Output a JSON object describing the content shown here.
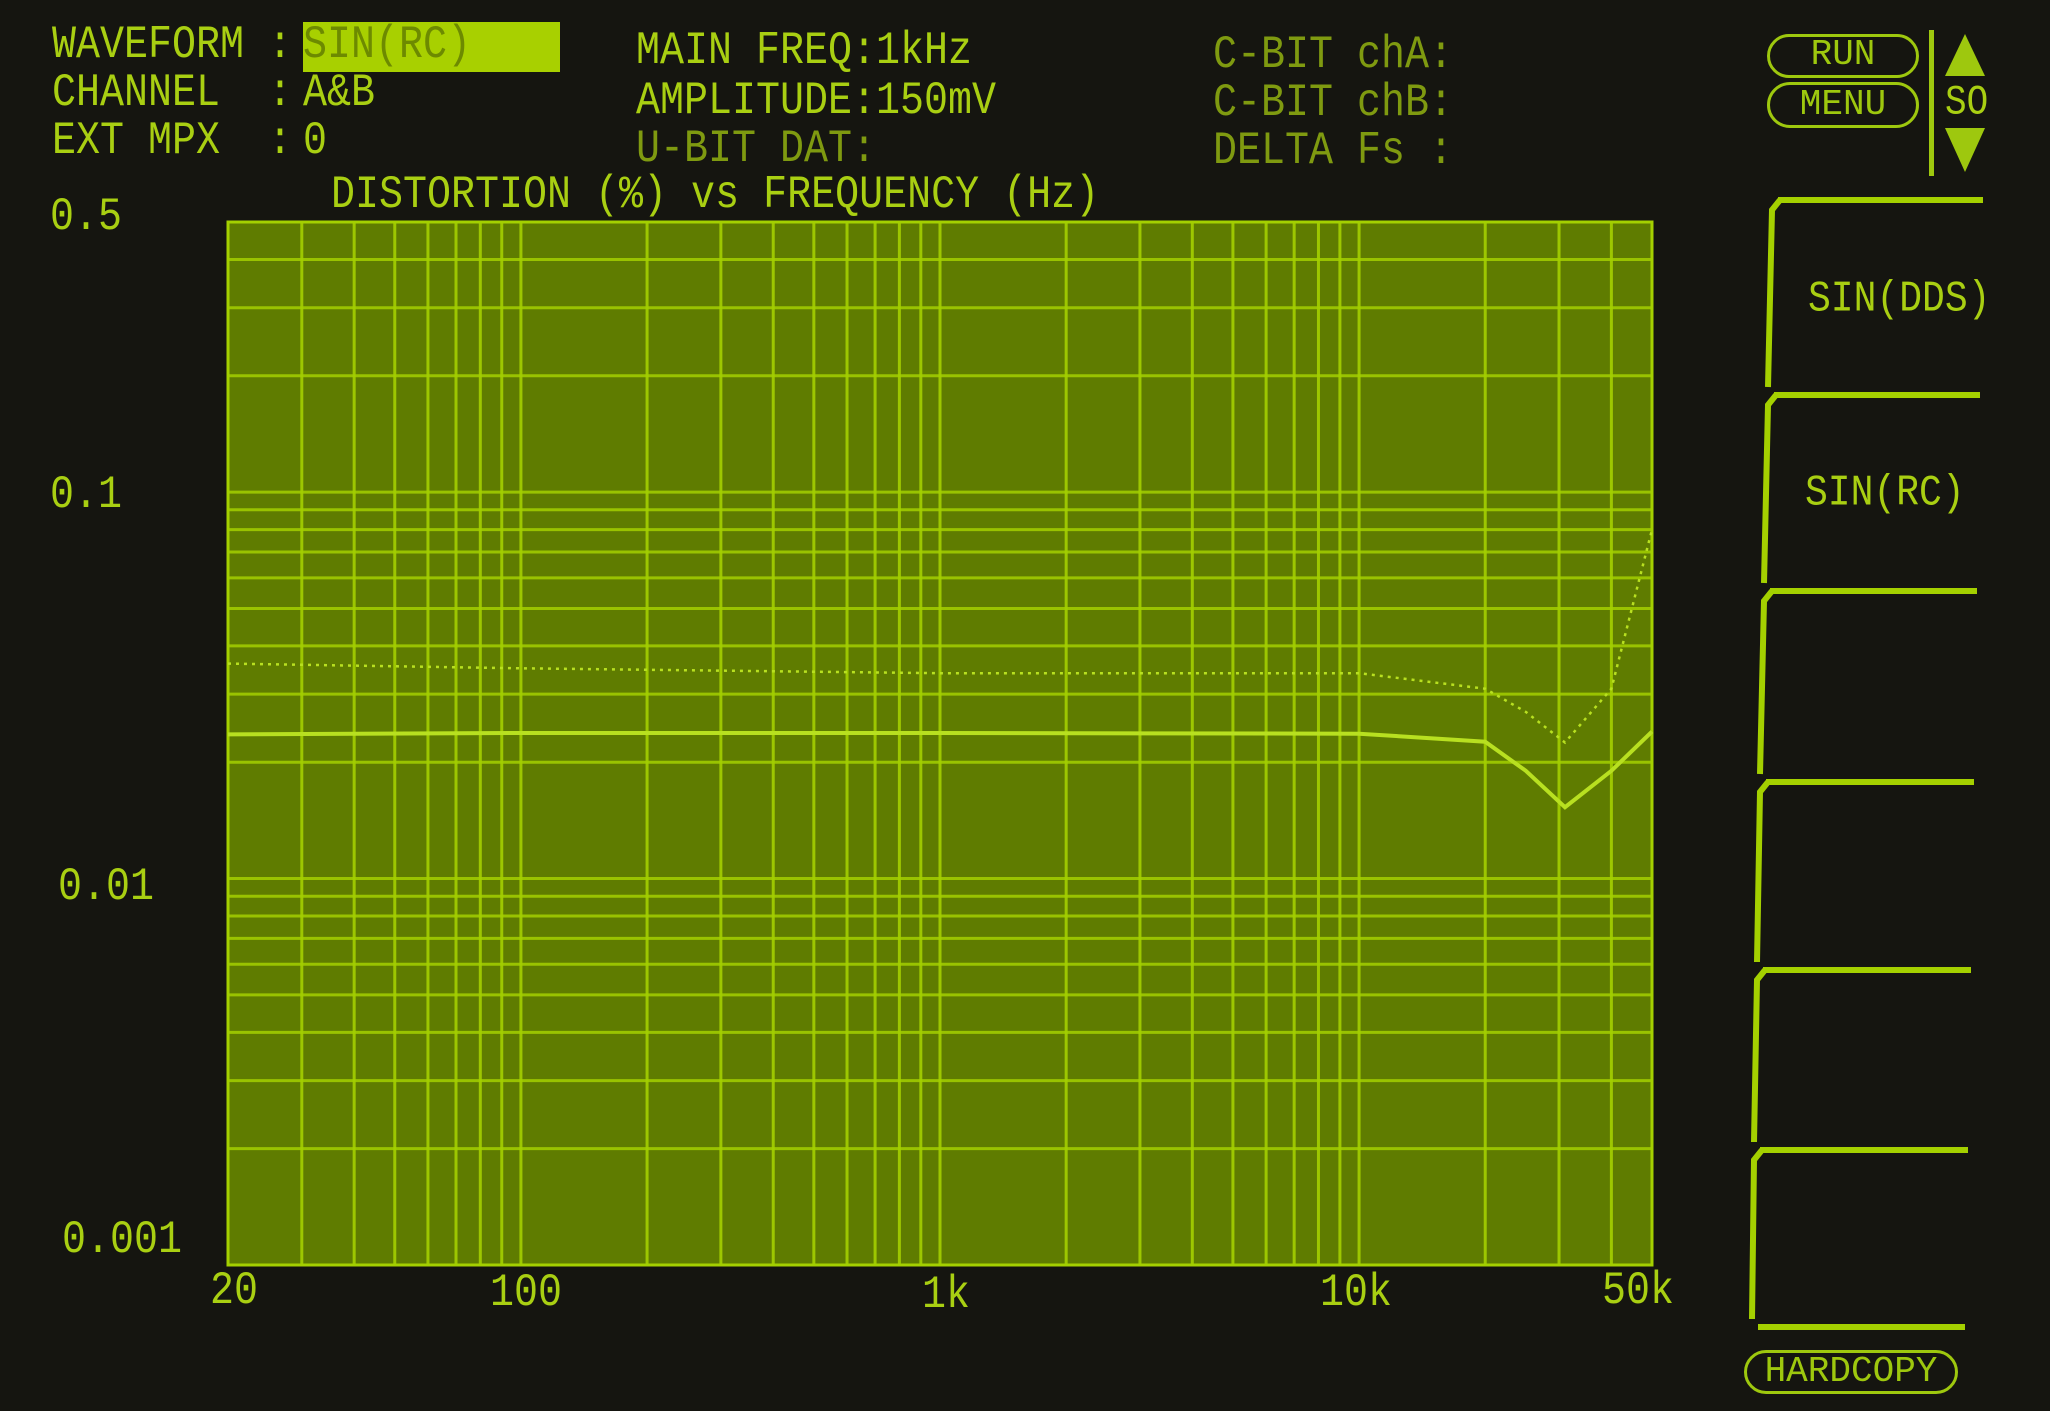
{
  "header": {
    "waveform_label": "WAVEFORM :",
    "waveform_value": "SIN(RC)",
    "channel_label": "CHANNEL  :",
    "channel_value": "A&B",
    "ext_mpx_label": "EXT MPX  :",
    "ext_mpx_value": "0",
    "main_freq": "MAIN FREQ:1kHz",
    "amplitude": "AMPLITUDE:150mV",
    "u_bit": "U-BIT DAT:",
    "c_bit_a": "C-BIT chA:",
    "c_bit_b": "C-BIT chB:",
    "delta_fs": "DELTA Fs :"
  },
  "controls": {
    "run": "RUN",
    "menu": "MENU",
    "scroll_label": "SO",
    "hardcopy": "HARDCOPY"
  },
  "softkeys": [
    "SIN(DDS)",
    "SIN(RC)",
    "",
    "",
    "",
    ""
  ],
  "colors": {
    "background": "#151510",
    "plot_bg": "#5f7c00",
    "grid": "#a4d000",
    "trace": "#b8e020",
    "text": "#a9cf12"
  },
  "chart_data": {
    "type": "line",
    "title": "DISTORTION (%) vs FREQUENCY (Hz)",
    "xscale": "log",
    "yscale": "log",
    "xlim": [
      20,
      50000
    ],
    "ylim": [
      0.001,
      0.5
    ],
    "grid": true,
    "xticks": [
      {
        "value": 20,
        "label": "20"
      },
      {
        "value": 100,
        "label": "100"
      },
      {
        "value": 1000,
        "label": "1k"
      },
      {
        "value": 10000,
        "label": "10k"
      },
      {
        "value": 50000,
        "label": "50k"
      }
    ],
    "yticks": [
      {
        "value": 0.5,
        "label": "0.5"
      },
      {
        "value": 0.1,
        "label": "0.1"
      },
      {
        "value": 0.01,
        "label": "0.01"
      },
      {
        "value": 0.001,
        "label": "0.001"
      }
    ],
    "series": [
      {
        "style": "solid",
        "points": [
          [
            20,
            0.0236
          ],
          [
            100,
            0.0238
          ],
          [
            1000,
            0.0238
          ],
          [
            10000,
            0.0237
          ],
          [
            20000,
            0.0226
          ],
          [
            25000,
            0.019
          ],
          [
            31000,
            0.0153
          ],
          [
            40000,
            0.019
          ],
          [
            50000,
            0.024
          ]
        ]
      },
      {
        "style": "dotted",
        "points": [
          [
            20,
            0.036
          ],
          [
            100,
            0.035
          ],
          [
            1000,
            0.034
          ],
          [
            10000,
            0.034
          ],
          [
            20000,
            0.031
          ],
          [
            25000,
            0.027
          ],
          [
            31000,
            0.0225
          ],
          [
            40000,
            0.031
          ],
          [
            50000,
            0.08
          ]
        ]
      }
    ]
  }
}
